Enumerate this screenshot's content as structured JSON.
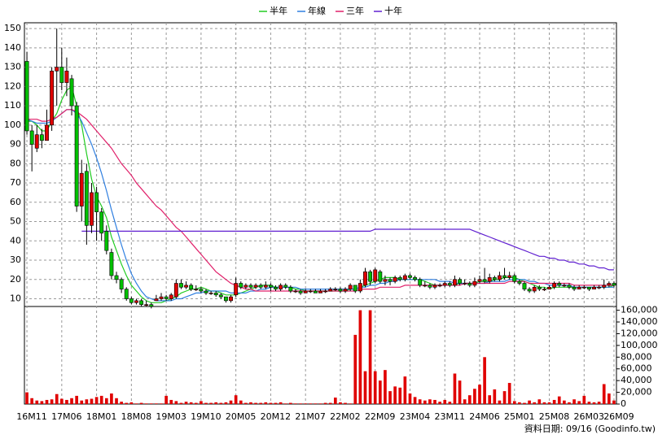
{
  "chart_data": {
    "type": "candlestick",
    "grid": true,
    "footer": "資料日期: 09/16 (Goodinfo.tw)",
    "categories": [
      "16M11",
      null,
      null,
      null,
      null,
      null,
      null,
      "17M06",
      null,
      null,
      null,
      null,
      null,
      null,
      "18M01",
      null,
      null,
      null,
      null,
      null,
      null,
      "18M08",
      null,
      null,
      null,
      null,
      null,
      null,
      "19M03",
      null,
      null,
      null,
      null,
      null,
      null,
      "19M10",
      null,
      null,
      null,
      null,
      null,
      null,
      "20M05",
      null,
      null,
      null,
      null,
      null,
      null,
      "20M12",
      null,
      null,
      null,
      null,
      null,
      null,
      "21M07",
      null,
      null,
      null,
      null,
      null,
      null,
      "22M02",
      null,
      null,
      null,
      null,
      null,
      null,
      "22M09",
      null,
      null,
      null,
      null,
      null,
      null,
      "23M04",
      null,
      null,
      null,
      null,
      null,
      null,
      "23M11",
      null,
      null,
      null,
      null,
      null,
      null,
      "24M06",
      null,
      null,
      null,
      null,
      null,
      null,
      "25M01",
      null,
      null,
      null,
      null,
      null,
      null,
      "25M08",
      null,
      null,
      null,
      null,
      null,
      null,
      "26M03",
      null,
      null,
      null,
      null,
      null,
      "26M09"
    ],
    "ylim": [
      6,
      153
    ],
    "yticks": [
      10,
      20,
      30,
      40,
      50,
      60,
      70,
      80,
      90,
      100,
      110,
      120,
      130,
      140,
      150
    ],
    "y2lim": [
      0,
      165000
    ],
    "y2ticks": [
      0,
      {
        "value": 20000,
        "label": "20,000"
      },
      {
        "value": 40000,
        "label": "40,000"
      },
      {
        "value": 60000,
        "label": "60,000"
      },
      {
        "value": 80000,
        "label": "80,000"
      },
      {
        "value": 100000,
        "label": "100,000"
      },
      {
        "value": 120000,
        "label": "120,000"
      },
      {
        "value": 140000,
        "label": "140,000"
      },
      {
        "value": 160000,
        "label": "160,000"
      }
    ],
    "candles": {
      "up_color": "#e00000",
      "down_color": "#00c000",
      "open": [
        133,
        97,
        88,
        95,
        92,
        100,
        128,
        130,
        122,
        124,
        110,
        58,
        76,
        48,
        65,
        55,
        45,
        34,
        22,
        20,
        15,
        10,
        8,
        9,
        7,
        7,
        9,
        10,
        11,
        10,
        11,
        18,
        16,
        17,
        15,
        15,
        14,
        13,
        13,
        12,
        11,
        9,
        12,
        18,
        16,
        17,
        16,
        17,
        16,
        17,
        16,
        15,
        17,
        16,
        14,
        14,
        13,
        14,
        14,
        13,
        14,
        14,
        15,
        15,
        14,
        15,
        17,
        14,
        17,
        24,
        19,
        24,
        19,
        20,
        19,
        21,
        20,
        22,
        21,
        20,
        17,
        17,
        16,
        17,
        17,
        18,
        17,
        20,
        18,
        18,
        17,
        19,
        20,
        19,
        21,
        20,
        22,
        21,
        22,
        19,
        18,
        15,
        14,
        16,
        15,
        15,
        16,
        18,
        17,
        17,
        16,
        15,
        16,
        16,
        15,
        16,
        16,
        17,
        18
      ],
      "high": [
        138,
        100,
        100,
        98,
        108,
        130,
        150,
        140,
        135,
        126,
        112,
        82,
        80,
        70,
        68,
        57,
        48,
        36,
        24,
        21,
        16,
        11,
        10,
        10,
        9,
        8,
        12,
        13,
        12,
        13,
        20,
        20,
        19,
        18,
        17,
        16,
        15,
        14,
        14,
        13,
        11,
        12,
        21,
        19,
        18,
        18,
        18,
        18,
        19,
        18,
        17,
        18,
        18,
        17,
        15,
        15,
        15,
        15,
        15,
        15,
        15,
        16,
        16,
        16,
        16,
        18,
        17,
        20,
        26,
        25,
        26,
        25,
        22,
        21,
        22,
        22,
        23,
        23,
        22,
        21,
        19,
        18,
        18,
        18,
        19,
        19,
        22,
        21,
        20,
        19,
        21,
        22,
        26,
        23,
        22,
        24,
        26,
        24,
        23,
        20,
        19,
        16,
        17,
        17,
        16,
        17,
        19,
        19,
        18,
        18,
        17,
        17,
        17,
        16,
        17,
        17,
        20,
        19,
        19
      ],
      "low": [
        95,
        76,
        86,
        88,
        92,
        97,
        110,
        118,
        115,
        105,
        55,
        50,
        38,
        44,
        40,
        40,
        33,
        20,
        18,
        13,
        9,
        7,
        7,
        6,
        6,
        5,
        9,
        9,
        9,
        9,
        10,
        15,
        15,
        14,
        14,
        13,
        12,
        12,
        11,
        10,
        8,
        8,
        11,
        15,
        15,
        15,
        15,
        15,
        15,
        14,
        14,
        14,
        15,
        13,
        13,
        12,
        13,
        13,
        13,
        13,
        13,
        14,
        14,
        13,
        13,
        14,
        13,
        13,
        16,
        17,
        18,
        18,
        17,
        17,
        18,
        19,
        19,
        20,
        19,
        16,
        16,
        15,
        15,
        16,
        16,
        16,
        16,
        17,
        17,
        16,
        16,
        18,
        18,
        18,
        19,
        19,
        20,
        20,
        18,
        17,
        14,
        13,
        13,
        14,
        14,
        15,
        15,
        16,
        16,
        15,
        14,
        15,
        15,
        14,
        15,
        15,
        15,
        16,
        16
      ],
      "close": [
        97,
        90,
        95,
        92,
        100,
        128,
        130,
        122,
        128,
        110,
        58,
        75,
        48,
        65,
        55,
        44,
        35,
        22,
        20,
        15,
        10,
        8,
        9,
        7,
        7,
        6,
        10,
        11,
        10,
        12,
        18,
        16,
        17,
        15,
        15,
        14,
        13,
        13,
        12,
        11,
        9,
        11,
        18,
        16,
        17,
        16,
        17,
        16,
        17,
        16,
        15,
        17,
        16,
        14,
        14,
        13,
        14,
        14,
        13,
        14,
        14,
        15,
        15,
        14,
        15,
        17,
        14,
        18,
        24,
        19,
        25,
        19,
        20,
        19,
        21,
        20,
        22,
        21,
        20,
        17,
        17,
        16,
        17,
        17,
        18,
        17,
        20,
        18,
        18,
        17,
        19,
        20,
        19,
        21,
        20,
        22,
        21,
        22,
        19,
        18,
        15,
        14,
        16,
        15,
        15,
        16,
        18,
        17,
        17,
        16,
        15,
        16,
        16,
        15,
        16,
        16,
        17,
        18,
        17
      ]
    },
    "volume": {
      "axis": "y2",
      "color": "#e00000",
      "values": [
        20000,
        10000,
        6000,
        5000,
        7000,
        8000,
        17000,
        9000,
        7000,
        10000,
        14000,
        6000,
        8000,
        9000,
        12000,
        14000,
        10000,
        18000,
        10000,
        4000,
        2000,
        3000,
        1000,
        2000,
        1000,
        1000,
        1000,
        1000,
        14000,
        7000,
        5000,
        2000,
        4000,
        3000,
        2000,
        5000,
        2000,
        2000,
        3000,
        2000,
        3000,
        6000,
        15000,
        6000,
        2000,
        3000,
        2000,
        2000,
        3000,
        2000,
        2000,
        3000,
        1000,
        2000,
        1000,
        1000,
        1000,
        1000,
        1000,
        1000,
        2000,
        2000,
        11000,
        3000,
        2000,
        1000,
        118000,
        160000,
        56000,
        160000,
        56000,
        40000,
        58000,
        22000,
        30000,
        28000,
        47000,
        18000,
        12000,
        8000,
        6000,
        8000,
        7000,
        4000,
        7000,
        4000,
        52000,
        40000,
        8000,
        15000,
        26000,
        33000,
        80000,
        15000,
        25000,
        6000,
        22000,
        36000,
        5000,
        3000,
        2000,
        6000,
        3000,
        8000,
        3000,
        3000,
        7000,
        13000,
        6000,
        3000,
        8000,
        5000,
        14000,
        4000,
        3000,
        4000,
        34000,
        18000,
        6000
      ]
    },
    "series": [
      {
        "name": "半年",
        "color": "#22cc22",
        "values": [
          102,
          102,
          100,
          97,
          97,
          102,
          106,
          113,
          118,
          120,
          110,
          100,
          85,
          72,
          63,
          58,
          52,
          42,
          35,
          28,
          22,
          17,
          14,
          11,
          9,
          8,
          8,
          8,
          9,
          10,
          11,
          13,
          14,
          15,
          15,
          16,
          15,
          14,
          14,
          13,
          12,
          12,
          12,
          13,
          14,
          15,
          16,
          17,
          17,
          17,
          16,
          16,
          16,
          16,
          15,
          15,
          14,
          14,
          14,
          14,
          14,
          14,
          14,
          14,
          14,
          15,
          15,
          16,
          17,
          18,
          19,
          20,
          21,
          21,
          21,
          20,
          20,
          20,
          20,
          20,
          19,
          18,
          17,
          17,
          17,
          17,
          17,
          18,
          18,
          18,
          18,
          19,
          19,
          19,
          20,
          20,
          21,
          21,
          21,
          20,
          19,
          18,
          17,
          16,
          16,
          15,
          16,
          16,
          16,
          16,
          16,
          16,
          16,
          16,
          16,
          16,
          16,
          16,
          17
        ]
      },
      {
        "name": "年線",
        "color": "#2f7fe0",
        "values": [
          103,
          102,
          101,
          101,
          101,
          102,
          104,
          106,
          108,
          108,
          106,
          102,
          96,
          90,
          83,
          75,
          66,
          56,
          47,
          38,
          30,
          23,
          18,
          14,
          11,
          10,
          9,
          9,
          9,
          9,
          10,
          10,
          11,
          12,
          13,
          13,
          14,
          14,
          14,
          14,
          14,
          13,
          13,
          13,
          13,
          14,
          14,
          15,
          15,
          16,
          16,
          16,
          16,
          16,
          16,
          15,
          15,
          15,
          15,
          15,
          15,
          15,
          15,
          15,
          15,
          15,
          15,
          16,
          16,
          17,
          17,
          18,
          18,
          19,
          19,
          20,
          20,
          20,
          20,
          20,
          20,
          20,
          20,
          19,
          19,
          19,
          18,
          18,
          18,
          18,
          18,
          18,
          18,
          19,
          19,
          19,
          19,
          20,
          20,
          20,
          20,
          19,
          19,
          18,
          18,
          17,
          17,
          17,
          17,
          17,
          16,
          16,
          16,
          16,
          16,
          16,
          16,
          16,
          16
        ]
      },
      {
        "name": "三年",
        "color": "#e0206a",
        "values": [
          103,
          103,
          103,
          102,
          102,
          103,
          104,
          106,
          108,
          108,
          107,
          105,
          103,
          100,
          97,
          94,
          91,
          88,
          84,
          80,
          77,
          74,
          70,
          67,
          64,
          61,
          58,
          56,
          53,
          50,
          47,
          45,
          42,
          39,
          36,
          33,
          30,
          27,
          24,
          22,
          20,
          18,
          17,
          16,
          15,
          15,
          14,
          14,
          14,
          14,
          14,
          14,
          14,
          14,
          14,
          14,
          14,
          14,
          14,
          14,
          14,
          14,
          14,
          14,
          14,
          14,
          14,
          15,
          15,
          15,
          15,
          16,
          16,
          16,
          16,
          16,
          17,
          17,
          17,
          17,
          17,
          17,
          17,
          17,
          17,
          17,
          17,
          17,
          18,
          18,
          18,
          18,
          18,
          18,
          18,
          18,
          18,
          19,
          19,
          19,
          19,
          18,
          18,
          18,
          18,
          18,
          18,
          18,
          18,
          18,
          17,
          17,
          17,
          17,
          17,
          17,
          17,
          17,
          17
        ]
      },
      {
        "name": "十年",
        "color": "#6020d0",
        "values": [
          null,
          null,
          null,
          null,
          null,
          null,
          null,
          null,
          null,
          null,
          null,
          45,
          45,
          45,
          45,
          45,
          45,
          45,
          45,
          45,
          45,
          45,
          45,
          45,
          45,
          45,
          45,
          45,
          45,
          45,
          45,
          45,
          45,
          45,
          45,
          45,
          45,
          45,
          45,
          45,
          45,
          45,
          45,
          45,
          45,
          45,
          45,
          45,
          45,
          45,
          45,
          45,
          45,
          45,
          45,
          45,
          45,
          45,
          45,
          45,
          45,
          45,
          45,
          45,
          45,
          45,
          45,
          45,
          45,
          45,
          46,
          46,
          46,
          46,
          46,
          46,
          46,
          46,
          46,
          46,
          46,
          46,
          46,
          46,
          46,
          46,
          46,
          46,
          46,
          46,
          45,
          44,
          43,
          42,
          41,
          40,
          39,
          38,
          37,
          36,
          35,
          34,
          33,
          32,
          32,
          31,
          31,
          30,
          30,
          29,
          29,
          28,
          28,
          27,
          27,
          26,
          26,
          25,
          25
        ]
      }
    ]
  }
}
